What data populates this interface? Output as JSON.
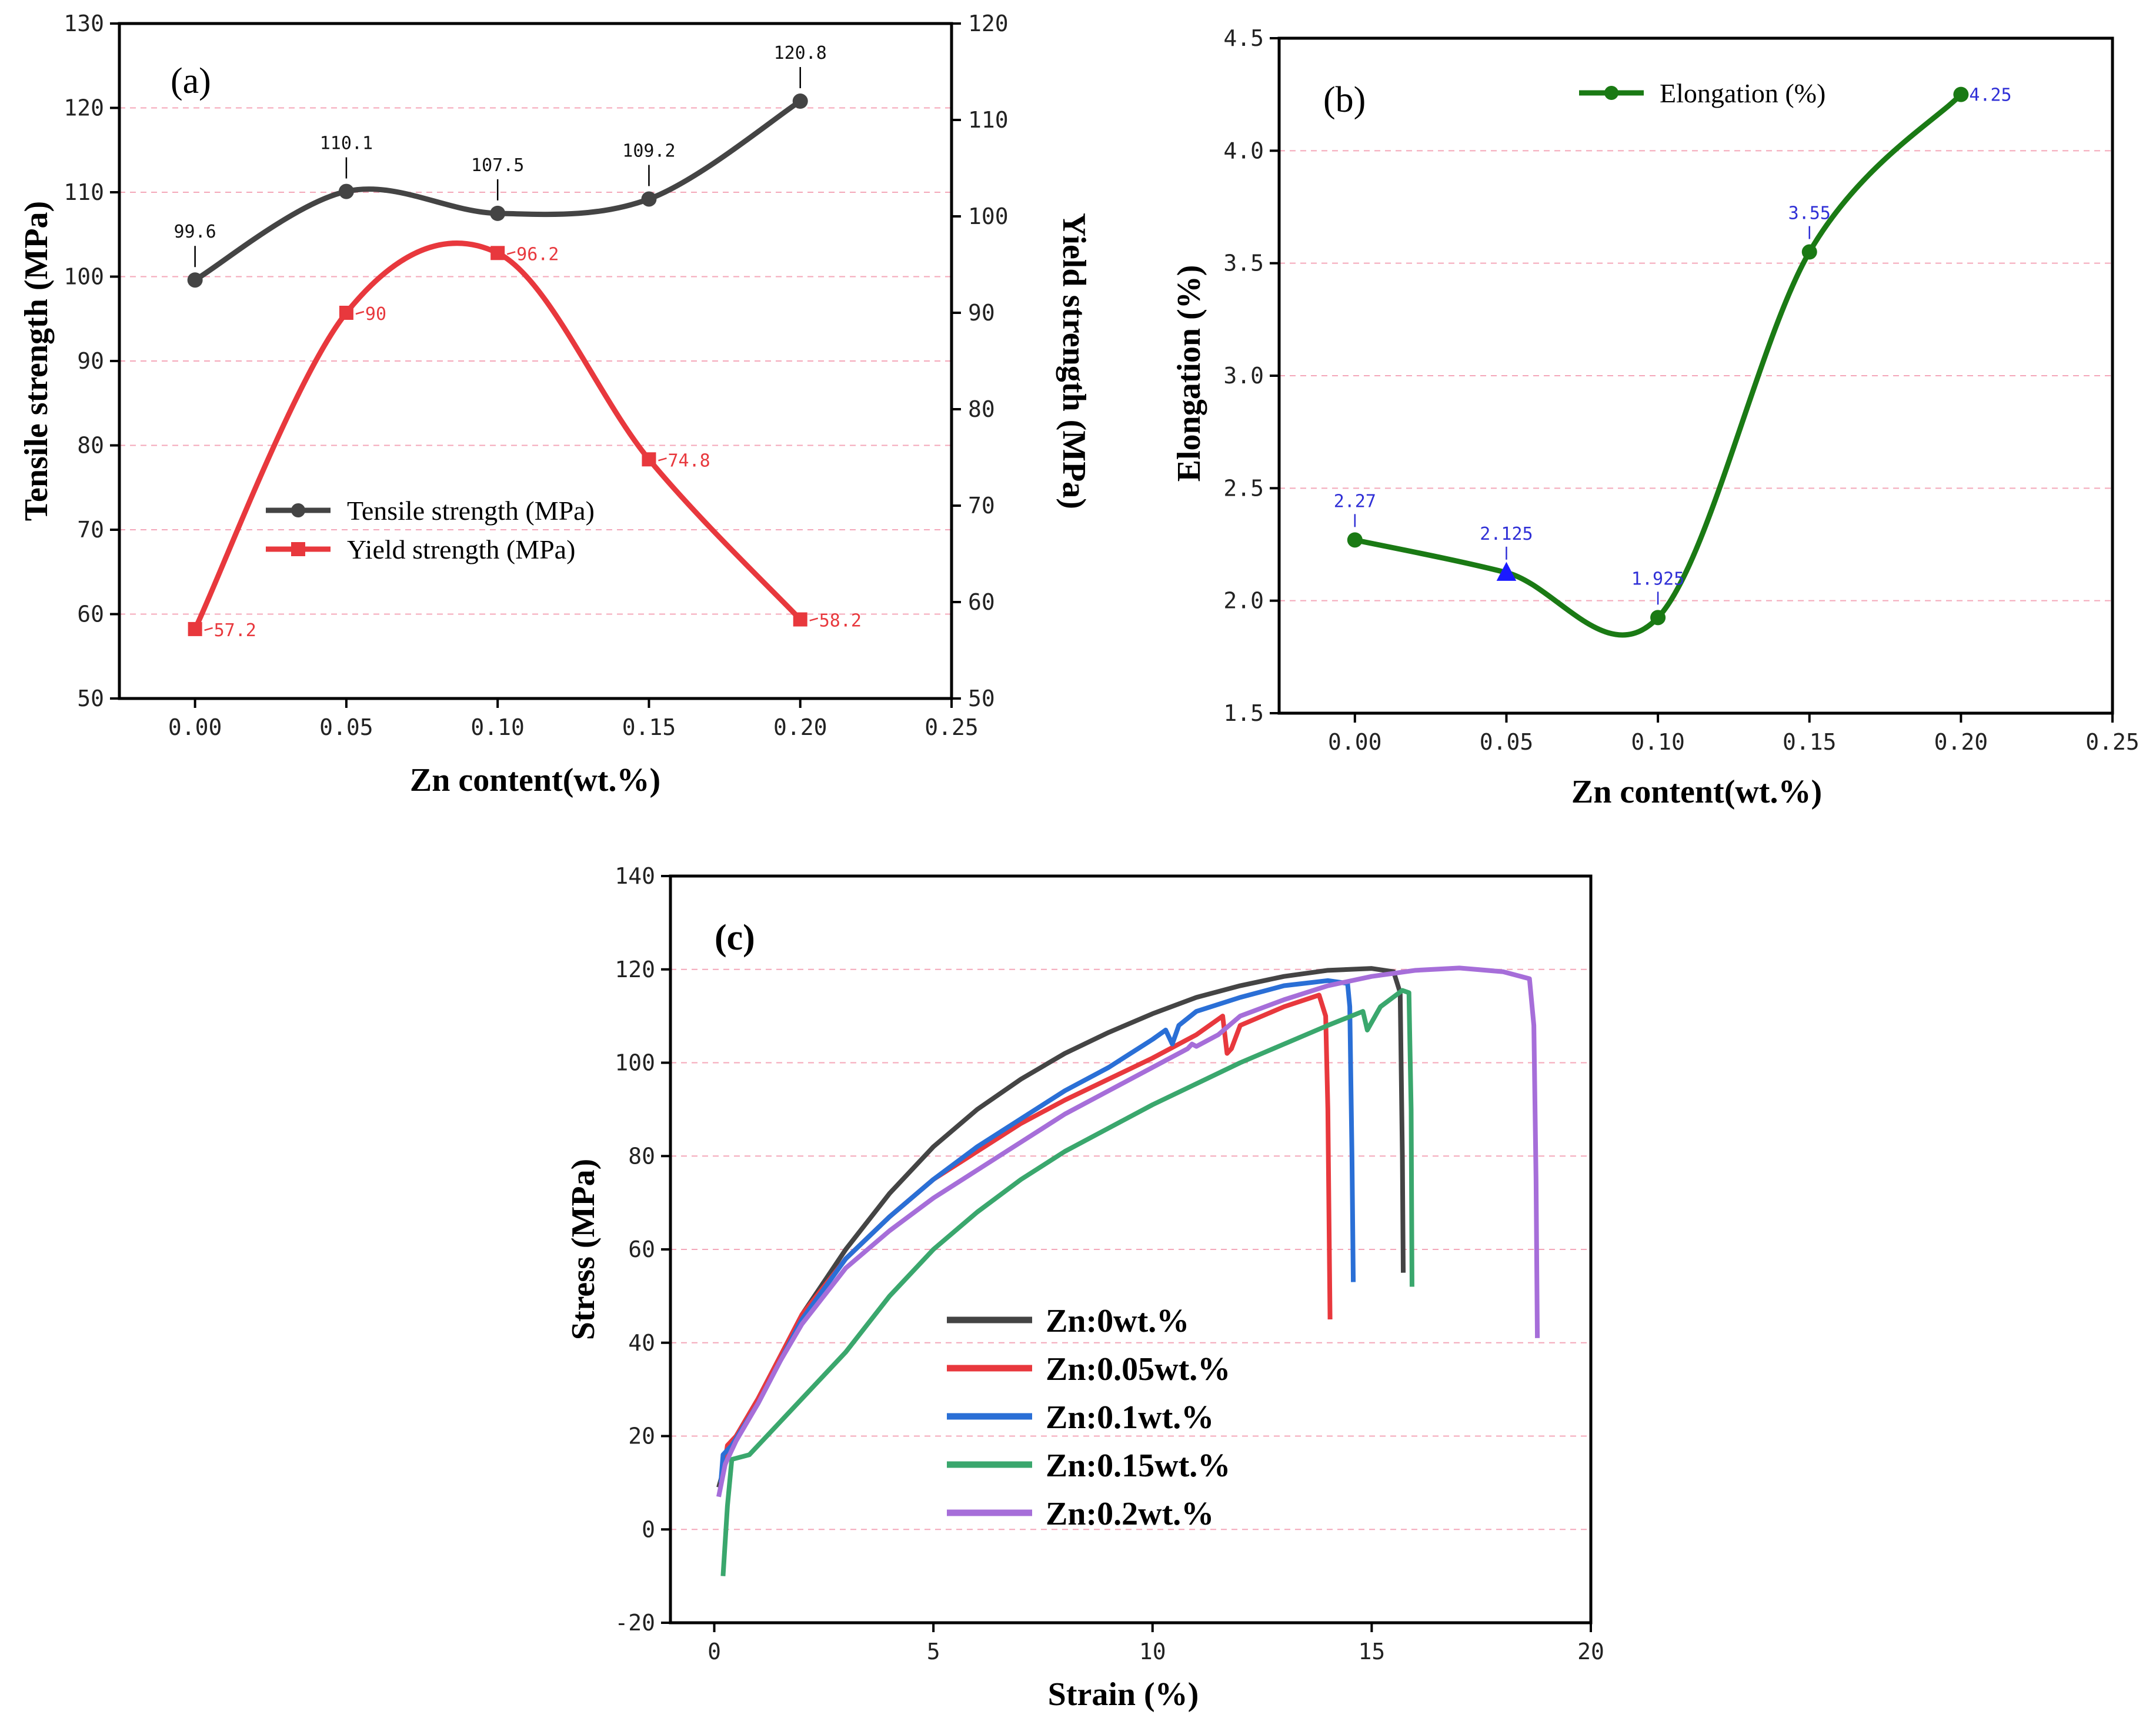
{
  "chart_data": [
    {
      "panel_label": "(a)",
      "type": "line",
      "x": [
        0.0,
        0.05,
        0.1,
        0.15,
        0.2
      ],
      "xlabel": "Zn content(wt.%)",
      "xlim": [
        -0.025,
        0.25
      ],
      "xticks": [
        "0.00",
        "0.05",
        "0.10",
        "0.15",
        "0.20",
        "0.25"
      ],
      "ylabel": "Tensile strength (MPa)",
      "ylim": [
        50,
        130
      ],
      "yticks": [
        "50",
        "60",
        "70",
        "80",
        "90",
        "100",
        "110",
        "120",
        "130"
      ],
      "y2label": "Yield strength (MPa)",
      "y2lim": [
        50,
        120
      ],
      "y2ticks": [
        "50",
        "60",
        "70",
        "80",
        "90",
        "100",
        "110",
        "120"
      ],
      "grid": true,
      "legend_position": "lower-left",
      "series": [
        {
          "name": "Tensile strength (MPa)",
          "axis": "left",
          "color": "#444444",
          "marker": "circle",
          "values": [
            99.6,
            110.1,
            107.5,
            109.2,
            120.8
          ],
          "labels": [
            "99.6",
            "110.1",
            "107.5",
            "109.2",
            "120.8"
          ]
        },
        {
          "name": "Yield strength (MPa)",
          "axis": "right",
          "color": "#e8383d",
          "marker": "square",
          "values": [
            57.2,
            90,
            96.2,
            74.8,
            58.2
          ],
          "labels": [
            "57.2",
            "90",
            "96.2",
            "74.8",
            "58.2"
          ]
        }
      ]
    },
    {
      "panel_label": "(b)",
      "type": "line",
      "x": [
        0.0,
        0.05,
        0.1,
        0.15,
        0.2
      ],
      "xlabel": "Zn content(wt.%)",
      "xlim": [
        -0.025,
        0.25
      ],
      "xticks": [
        "0.00",
        "0.05",
        "0.10",
        "0.15",
        "0.20",
        "0.25"
      ],
      "ylabel": "Elongation (%)",
      "ylim": [
        1.5,
        4.5
      ],
      "yticks": [
        "1.5",
        "2.0",
        "2.5",
        "3.0",
        "3.5",
        "4.0",
        "4.5"
      ],
      "grid": true,
      "legend_position": "top-center",
      "series": [
        {
          "name": "Elongation (%)",
          "color": "#1a7a14",
          "marker": "circle",
          "values": [
            2.27,
            2.125,
            1.925,
            3.55,
            4.25
          ],
          "labels": [
            "2.27",
            "2.125",
            "1.925",
            "3.55",
            "4.25"
          ],
          "label_color": "#2f2fd6",
          "special_marker": {
            "index": 1,
            "shape": "triangle",
            "color": "#1a1aff"
          }
        }
      ]
    },
    {
      "panel_label": "(c)",
      "type": "line",
      "xlabel": "Strain (%)",
      "ylabel": "Stress (MPa)",
      "xlim": [
        -1,
        20
      ],
      "ylim": [
        -20,
        140
      ],
      "xticks": [
        "0",
        "5",
        "10",
        "15",
        "20"
      ],
      "yticks": [
        "-20",
        "0",
        "20",
        "40",
        "60",
        "80",
        "100",
        "120",
        "140"
      ],
      "grid": true,
      "legend_position": "lower-center",
      "series": [
        {
          "name": "Zn:0wt.%",
          "color": "#444444",
          "points": [
            [
              0.1,
              9
            ],
            [
              0.25,
              14
            ],
            [
              0.5,
              20
            ],
            [
              1,
              28
            ],
            [
              1.5,
              37
            ],
            [
              2,
              46
            ],
            [
              3,
              60
            ],
            [
              4,
              72
            ],
            [
              5,
              82
            ],
            [
              6,
              90
            ],
            [
              7,
              96.5
            ],
            [
              8,
              102
            ],
            [
              9,
              106.5
            ],
            [
              10,
              110.5
            ],
            [
              11,
              114
            ],
            [
              12,
              116.5
            ],
            [
              13,
              118.5
            ],
            [
              14,
              119.8
            ],
            [
              15,
              120.2
            ],
            [
              15.5,
              119.5
            ],
            [
              15.65,
              115
            ],
            [
              15.7,
              80
            ],
            [
              15.72,
              55
            ]
          ]
        },
        {
          "name": "Zn:0.05wt.%",
          "color": "#e8383d",
          "points": [
            [
              0.2,
              12
            ],
            [
              0.3,
              18
            ],
            [
              0.5,
              20
            ],
            [
              1,
              28
            ],
            [
              1.5,
              37
            ],
            [
              2,
              46
            ],
            [
              3,
              58
            ],
            [
              4,
              67
            ],
            [
              5,
              75
            ],
            [
              6,
              81
            ],
            [
              7,
              87
            ],
            [
              8,
              92
            ],
            [
              9,
              96.5
            ],
            [
              10,
              101
            ],
            [
              11,
              106
            ],
            [
              11.6,
              110
            ],
            [
              11.7,
              102
            ],
            [
              11.8,
              103
            ],
            [
              12,
              108
            ],
            [
              13,
              112
            ],
            [
              13.8,
              114.5
            ],
            [
              13.95,
              110
            ],
            [
              14,
              90
            ],
            [
              14.05,
              45
            ]
          ]
        },
        {
          "name": "Zn:0.1wt.%",
          "color": "#2a6fd6",
          "points": [
            [
              0.15,
              10
            ],
            [
              0.2,
              16
            ],
            [
              0.4,
              18
            ],
            [
              1,
              27
            ],
            [
              1.5,
              36
            ],
            [
              2,
              45
            ],
            [
              3,
              58
            ],
            [
              4,
              67
            ],
            [
              5,
              75
            ],
            [
              6,
              82
            ],
            [
              7,
              88
            ],
            [
              8,
              94
            ],
            [
              9,
              99
            ],
            [
              10,
              105
            ],
            [
              10.3,
              107
            ],
            [
              10.45,
              104
            ],
            [
              10.6,
              108
            ],
            [
              11,
              111
            ],
            [
              12,
              114
            ],
            [
              13,
              116.5
            ],
            [
              14,
              117.6
            ],
            [
              14.45,
              117
            ],
            [
              14.5,
              112
            ],
            [
              14.55,
              80
            ],
            [
              14.58,
              53
            ]
          ]
        },
        {
          "name": "Zn:0.15wt.%",
          "color": "#3aa76d",
          "points": [
            [
              0.2,
              -10
            ],
            [
              0.3,
              5
            ],
            [
              0.4,
              15
            ],
            [
              0.8,
              16
            ],
            [
              1.5,
              23
            ],
            [
              2,
              28
            ],
            [
              3,
              38
            ],
            [
              4,
              50
            ],
            [
              5,
              60
            ],
            [
              6,
              68
            ],
            [
              7,
              75
            ],
            [
              8,
              81
            ],
            [
              9,
              86
            ],
            [
              10,
              91
            ],
            [
              11,
              95.5
            ],
            [
              12,
              100
            ],
            [
              13,
              104
            ],
            [
              14,
              108
            ],
            [
              14.8,
              111
            ],
            [
              14.9,
              107
            ],
            [
              15.2,
              112
            ],
            [
              15.7,
              115.5
            ],
            [
              15.85,
              115
            ],
            [
              15.9,
              90
            ],
            [
              15.92,
              52
            ]
          ]
        },
        {
          "name": "Zn:0.2wt.%",
          "color": "#a66ed9",
          "points": [
            [
              0.1,
              7
            ],
            [
              0.25,
              14
            ],
            [
              0.5,
              19
            ],
            [
              1,
              27
            ],
            [
              1.5,
              36
            ],
            [
              2,
              44
            ],
            [
              3,
              56
            ],
            [
              4,
              64
            ],
            [
              5,
              71
            ],
            [
              6,
              77
            ],
            [
              7,
              83
            ],
            [
              8,
              89
            ],
            [
              9,
              94
            ],
            [
              10,
              99
            ],
            [
              10.8,
              103
            ],
            [
              10.9,
              104
            ],
            [
              11,
              103.5
            ],
            [
              11.5,
              106
            ],
            [
              12,
              110
            ],
            [
              13,
              113.5
            ],
            [
              14,
              116.5
            ],
            [
              15,
              118.5
            ],
            [
              16,
              119.8
            ],
            [
              17,
              120.3
            ],
            [
              18,
              119.5
            ],
            [
              18.6,
              118
            ],
            [
              18.7,
              108
            ],
            [
              18.75,
              75
            ],
            [
              18.78,
              41
            ]
          ]
        }
      ]
    }
  ]
}
